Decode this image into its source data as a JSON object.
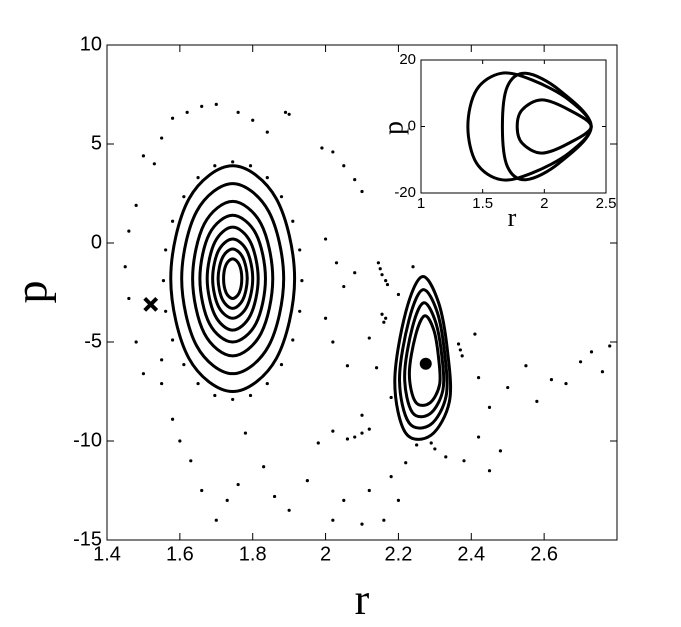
{
  "chart_data": [
    {
      "type": "poincare",
      "xlabel": "r",
      "ylabel": "p",
      "xlim": [
        1.4,
        2.8
      ],
      "ylim": [
        -15,
        10
      ],
      "xticks": [
        1.4,
        1.6,
        1.8,
        2,
        2.2,
        2.4,
        2.6
      ],
      "yticks": [
        -15,
        -10,
        -5,
        0,
        5,
        10
      ],
      "series": [
        {
          "closed": true,
          "color": "#000",
          "x": [
            1.915,
            1.865,
            1.745,
            1.625,
            1.575,
            1.625,
            1.745,
            1.865
          ],
          "y": [
            -1.8,
            2.23,
            3.9,
            2.23,
            -1.8,
            -5.83,
            -7.5,
            -5.83
          ]
        },
        {
          "closed": true,
          "color": "#000",
          "x": [
            1.885,
            1.844,
            1.745,
            1.646,
            1.605,
            1.646,
            1.745,
            1.844
          ],
          "y": [
            -1.8,
            1.59,
            3.0,
            1.59,
            -1.8,
            -5.19,
            -6.6,
            -5.19
          ]
        },
        {
          "closed": true,
          "color": "#000",
          "x": [
            1.855,
            1.823,
            1.745,
            1.667,
            1.635,
            1.667,
            1.745,
            1.823
          ],
          "y": [
            -1.8,
            0.96,
            2.1,
            0.96,
            -1.8,
            -4.56,
            -5.7,
            -4.56
          ]
        },
        {
          "closed": true,
          "color": "#000",
          "x": [
            1.835,
            1.809,
            1.745,
            1.681,
            1.655,
            1.681,
            1.745,
            1.809
          ],
          "y": [
            -1.8,
            0.46,
            1.4,
            0.46,
            -1.8,
            -4.06,
            -5.0,
            -4.06
          ]
        },
        {
          "closed": true,
          "color": "#000",
          "x": [
            1.815,
            1.794,
            1.745,
            1.696,
            1.675,
            1.696,
            1.745,
            1.794
          ],
          "y": [
            -1.8,
            0.04,
            0.8,
            0.04,
            -1.8,
            -3.64,
            -4.4,
            -3.64
          ]
        },
        {
          "closed": true,
          "color": "#000",
          "x": [
            1.8,
            1.784,
            1.745,
            1.706,
            1.69,
            1.706,
            1.745,
            1.784
          ],
          "y": [
            -1.8,
            -0.39,
            0.2,
            -0.39,
            -1.8,
            -3.21,
            -3.8,
            -3.21
          ]
        },
        {
          "closed": true,
          "color": "#000",
          "x": [
            1.785,
            1.773,
            1.745,
            1.717,
            1.705,
            1.717,
            1.745,
            1.773
          ],
          "y": [
            -1.8,
            -0.74,
            -0.3,
            -0.74,
            -1.8,
            -2.86,
            -3.3,
            -2.86
          ]
        },
        {
          "closed": true,
          "color": "#000",
          "x": [
            1.77,
            1.763,
            1.745,
            1.727,
            1.72,
            1.727,
            1.745,
            1.763
          ],
          "y": [
            -1.8,
            -1.09,
            -0.8,
            -1.09,
            -1.8,
            -2.51,
            -2.8,
            -2.51
          ]
        },
        {
          "closed": true,
          "color": "#000",
          "x": [
            2.265,
            2.31,
            2.335,
            2.34,
            2.29,
            2.22,
            2.19,
            2.22
          ],
          "y": [
            -1.7,
            -3.0,
            -5.5,
            -8.0,
            -9.7,
            -9.6,
            -7.0,
            -3.5
          ]
        },
        {
          "closed": true,
          "color": "#000",
          "x": [
            2.267,
            2.306,
            2.327,
            2.331,
            2.289,
            2.229,
            2.203,
            2.229
          ],
          "y": [
            -2.36,
            -3.46,
            -5.59,
            -7.72,
            -9.16,
            -9.08,
            -6.87,
            -3.89
          ]
        },
        {
          "closed": true,
          "color": "#000",
          "x": [
            2.269,
            2.301,
            2.319,
            2.322,
            2.287,
            2.238,
            2.217,
            2.238
          ],
          "y": [
            -3.02,
            -3.93,
            -5.68,
            -7.43,
            -8.62,
            -8.55,
            -6.73,
            -4.28
          ]
        },
        {
          "closed": true,
          "color": "#000",
          "x": [
            2.272,
            2.297,
            2.31,
            2.313,
            2.286,
            2.247,
            2.23,
            2.247
          ],
          "y": [
            -3.68,
            -4.39,
            -5.77,
            -7.15,
            -8.08,
            -8.03,
            -6.6,
            -4.67
          ]
        },
        {
          "marker": "point",
          "color": "#000",
          "x": [
            1.935,
            1.929,
            1.91,
            1.879,
            1.84,
            1.794,
            1.745,
            1.696,
            1.65,
            1.611,
            1.58,
            1.561,
            1.555,
            1.561,
            1.58,
            1.611,
            1.65,
            1.696,
            1.745,
            1.794,
            1.84,
            1.879,
            1.91,
            1.929,
            1.62,
            1.66,
            1.7,
            1.58,
            1.76,
            1.8,
            1.89,
            1.9,
            1.84,
            1.55,
            1.5,
            1.53,
            1.48,
            1.46,
            1.45,
            1.46,
            1.48,
            1.5,
            1.55,
            1.55,
            1.58,
            1.6,
            1.63,
            1.66,
            1.7,
            1.73,
            1.76,
            1.78,
            1.83,
            1.86,
            1.9,
            1.95,
            1.98,
            2.02,
            2.05,
            2.1,
            2.12,
            2.16,
            2.18,
            2.2,
            1.99,
            2.02,
            2.05,
            2.08,
            2.1,
            2.0,
            2.03,
            2.05,
            2.08,
            2.0,
            2.02,
            2.06,
            2.12,
            2.14,
            2.18,
            2.1,
            2.02,
            2.2,
            2.24,
            2.41,
            2.42,
            2.45,
            2.5,
            2.55,
            2.58,
            2.62,
            2.66,
            2.7,
            2.73,
            2.76,
            2.78,
            2.42,
            2.48,
            2.38,
            2.45,
            2.33,
            2.22,
            2.25,
            2.145,
            2.15,
            2.155,
            2.165,
            2.17,
            2.155,
            2.165,
            2.16,
            2.08,
            2.1,
            2.12,
            2.06,
            2.29,
            2.3,
            2.365,
            2.37,
            2.375
          ],
          "y": [
            -1.9,
            -0.35,
            1.1,
            2.34,
            3.3,
            3.9,
            4.1,
            3.9,
            3.3,
            2.34,
            1.1,
            -0.35,
            -1.9,
            -3.45,
            -4.9,
            -6.14,
            -7.1,
            -7.7,
            -7.9,
            -7.7,
            -7.1,
            -6.14,
            -4.9,
            -3.45,
            6.6,
            6.9,
            7.0,
            6.3,
            6.6,
            6.2,
            6.6,
            6.5,
            5.6,
            5.3,
            4.4,
            4.0,
            1.9,
            0.6,
            -1.2,
            -2.8,
            -5.0,
            -6.6,
            -7.1,
            -5.9,
            -8.9,
            -10.0,
            -11.0,
            -12.5,
            -14.0,
            -13.0,
            -12.2,
            -9.6,
            -11.3,
            -12.8,
            -13.5,
            -12.0,
            -10.1,
            -14.0,
            -13.0,
            -14.2,
            -12.5,
            -14.0,
            -11.8,
            -13.0,
            4.8,
            4.6,
            3.9,
            3.2,
            2.6,
            0.2,
            -1.0,
            -2.2,
            -1.5,
            -3.8,
            -5.0,
            -6.2,
            -4.8,
            -6.3,
            -7.8,
            -8.7,
            -9.5,
            -2.6,
            -1.2,
            -4.6,
            -6.8,
            -8.3,
            -7.3,
            -6.2,
            -8.0,
            -6.9,
            -7.1,
            -6.0,
            -5.5,
            -6.5,
            -5.2,
            -9.8,
            -10.5,
            -11.0,
            -11.5,
            -10.8,
            -11.1,
            -10.2,
            -1.0,
            -1.3,
            -1.6,
            -1.9,
            -2.1,
            -3.6,
            -3.8,
            -4.0,
            -9.8,
            -9.6,
            -9.4,
            -9.9,
            -10.1,
            -10.4,
            -5.1,
            -5.4,
            -5.7
          ]
        },
        {
          "marker": "cross",
          "color": "#000",
          "x": [
            1.52
          ],
          "y": [
            -3.1
          ]
        },
        {
          "marker": "dot",
          "color": "#000",
          "x": [
            2.275
          ],
          "y": [
            -6.1
          ]
        }
      ]
    },
    {
      "type": "poincare",
      "xlabel": "r",
      "ylabel": "p",
      "xlim": [
        1,
        2.5
      ],
      "ylim": [
        -20,
        20
      ],
      "xticks": [
        1,
        1.5,
        2,
        2.5
      ],
      "yticks": [
        -20,
        0,
        20
      ],
      "series": [
        {
          "closed": true,
          "color": "#000",
          "x": [
            2.38,
            2.2,
            1.9,
            1.65,
            1.45,
            1.38,
            1.45,
            1.65,
            1.9,
            2.2
          ],
          "y": [
            0,
            8,
            14,
            16,
            11,
            0,
            -11,
            -16,
            -14,
            -8
          ]
        },
        {
          "closed": true,
          "color": "#000",
          "x": [
            2.38,
            2.12,
            1.85,
            1.7,
            1.66,
            1.7,
            1.85,
            2.12
          ],
          "y": [
            0,
            11,
            16,
            12,
            0,
            -12,
            -16,
            -11
          ]
        },
        {
          "closed": true,
          "color": "#000",
          "x": [
            2.38,
            2.2,
            1.98,
            1.82,
            1.78,
            1.82,
            1.98,
            2.2
          ],
          "y": [
            0,
            5,
            8,
            5,
            0,
            -5,
            -8,
            -5
          ]
        }
      ]
    }
  ]
}
